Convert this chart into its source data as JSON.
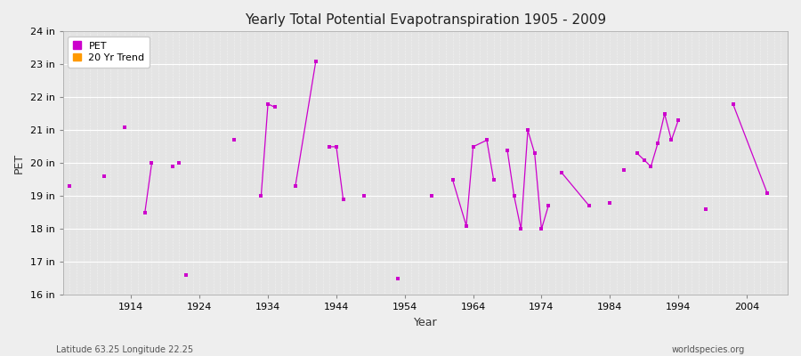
{
  "title": "Yearly Total Potential Evapotranspiration 1905 - 2009",
  "xlabel": "Year",
  "ylabel": "PET",
  "lat_lon_label": "Latitude 63.25 Longitude 22.25",
  "watermark": "worldspecies.org",
  "ylim": [
    16,
    24
  ],
  "xlim": [
    1904,
    2010
  ],
  "ytick_labels": [
    "16 in",
    "17 in",
    "18 in",
    "19 in",
    "20 in",
    "21 in",
    "22 in",
    "23 in",
    "24 in"
  ],
  "ytick_values": [
    16,
    17,
    18,
    19,
    20,
    21,
    22,
    23,
    24
  ],
  "xtick_values": [
    1914,
    1924,
    1934,
    1944,
    1954,
    1964,
    1974,
    1984,
    1994,
    2004
  ],
  "line_color": "#cc00cc",
  "trend_color": "#ff9900",
  "bg_color": "#eeeeee",
  "plot_bg_color": "#e4e4e4",
  "grid_color": "#ffffff",
  "years": [
    1905,
    1910,
    1913,
    1916,
    1917,
    1920,
    1921,
    1922,
    1929,
    1933,
    1934,
    1935,
    1938,
    1941,
    1943,
    1944,
    1945,
    1948,
    1953,
    1958,
    1961,
    1963,
    1964,
    1966,
    1967,
    1969,
    1970,
    1971,
    1972,
    1973,
    1974,
    1975,
    1977,
    1981,
    1984,
    1986,
    1988,
    1989,
    1990,
    1991,
    1992,
    1993,
    1994,
    1998,
    2002,
    2007
  ],
  "pet_values": [
    19.3,
    19.6,
    21.1,
    18.5,
    20.0,
    19.9,
    20.0,
    16.6,
    20.7,
    19.0,
    21.8,
    21.7,
    19.3,
    23.1,
    20.5,
    20.5,
    18.9,
    19.0,
    16.5,
    19.0,
    19.5,
    18.1,
    20.5,
    20.7,
    19.5,
    20.4,
    19.0,
    18.0,
    21.0,
    20.3,
    18.0,
    18.7,
    19.7,
    18.7,
    18.8,
    19.8,
    20.3,
    20.1,
    19.9,
    20.6,
    21.5,
    20.7,
    21.3,
    18.6,
    21.8,
    19.1
  ],
  "segments": [
    [
      3,
      4
    ],
    [
      9,
      10,
      11
    ],
    [
      12,
      13
    ],
    [
      14,
      15,
      16
    ],
    [
      20,
      21,
      22,
      23,
      24
    ],
    [
      25,
      26,
      27,
      28,
      29,
      30,
      31
    ],
    [
      32,
      33
    ],
    [
      36,
      37,
      38,
      39,
      40,
      41,
      42
    ],
    [
      44,
      45
    ]
  ]
}
